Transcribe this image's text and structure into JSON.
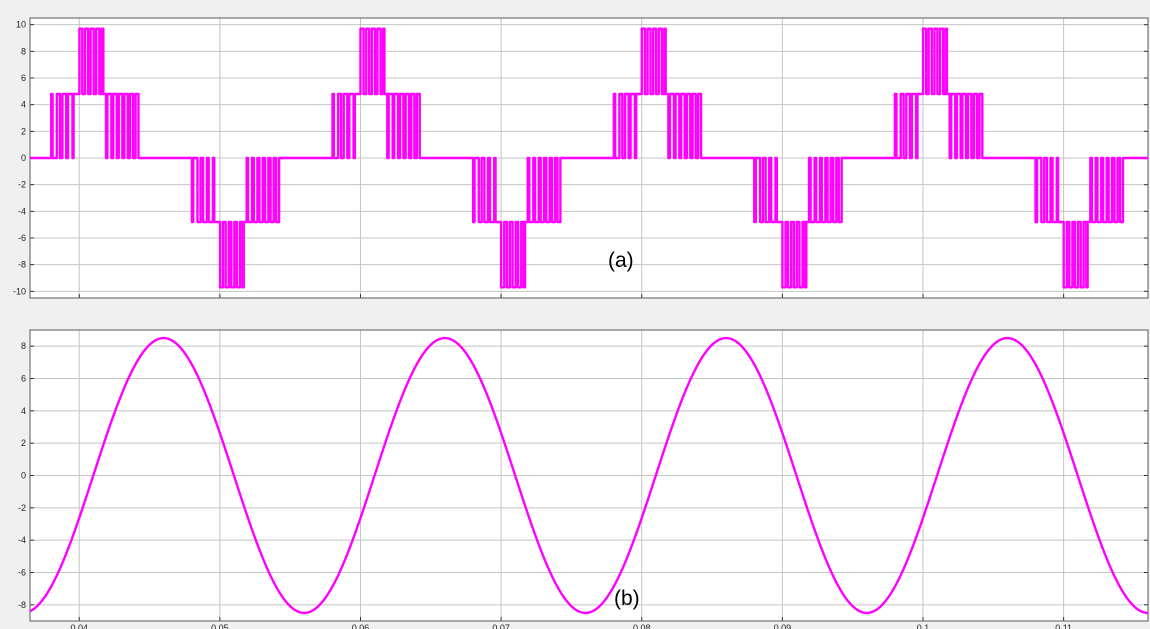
{
  "chart_data": [
    {
      "type": "line",
      "panel_label": "(a)",
      "x_domain": [
        0.0365,
        0.116
      ],
      "ylim": [
        -10.5,
        10.5
      ],
      "y_ticks": [
        10,
        8,
        6,
        4,
        2,
        0,
        -2,
        -4,
        -6,
        -8,
        -10
      ],
      "y_tick_labels": [
        "10",
        "8",
        "6",
        "4",
        "2",
        "0",
        "-2",
        "-4",
        "-6",
        "-8",
        "-10"
      ],
      "x_ticks": [
        0.04,
        0.05,
        0.06,
        0.07,
        0.08,
        0.09,
        0.1,
        0.11
      ],
      "x_tick_labels": [],
      "grid": true,
      "waveform": "multilevel PWM staircase",
      "levels": [
        -9.7,
        -4.8,
        0,
        4.8,
        9.7
      ],
      "period": 0.02,
      "color": "#ff00ff"
    },
    {
      "type": "line",
      "panel_label": "(b)",
      "x_domain": [
        0.0365,
        0.116
      ],
      "ylim": [
        -9,
        9
      ],
      "y_ticks": [
        8,
        6,
        4,
        2,
        0,
        -2,
        -4,
        -6,
        -8
      ],
      "y_tick_labels": [
        "8",
        "6",
        "4",
        "2",
        "0",
        "-2",
        "-4",
        "-6",
        "-8"
      ],
      "x_ticks": [
        0.04,
        0.05,
        0.06,
        0.07,
        0.08,
        0.09,
        0.1,
        0.11
      ],
      "x_tick_labels": [
        "0.04",
        "0.05",
        "0.06",
        "0.07",
        "0.08",
        "0.09",
        "0.1",
        "0.11"
      ],
      "grid": true,
      "waveform": "sinusoid",
      "amplitude": 8.5,
      "period": 0.02,
      "peak_time": 0.046,
      "color": "#ff00ff"
    }
  ]
}
